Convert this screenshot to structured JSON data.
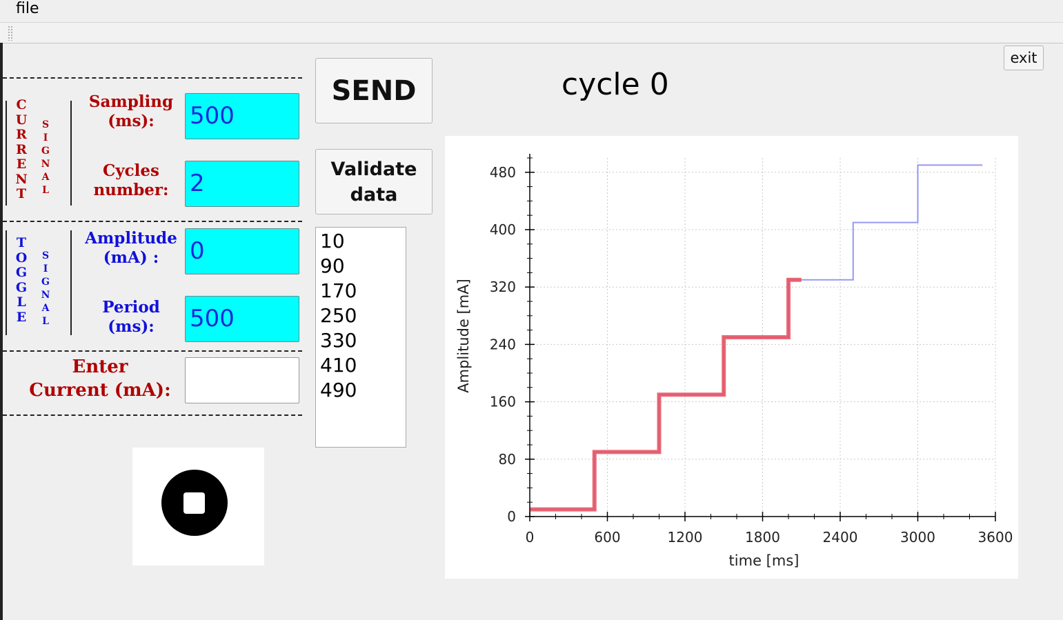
{
  "menubar": {
    "file_label": "file"
  },
  "window": {
    "exit_label": "exit"
  },
  "current_signal": {
    "title_word1": "CURRENT",
    "title_word2": "SIGNAL",
    "sampling_label_line1": "Sampling",
    "sampling_label_line2": "(ms):",
    "sampling_value": "500",
    "cycles_label_line1": "Cycles",
    "cycles_label_line2": "number:",
    "cycles_value": "2"
  },
  "toggle_signal": {
    "title_word1": "TOGGLE",
    "title_word2": "SIGNAL",
    "amplitude_label_line1": "Amplitude",
    "amplitude_label_line2": "(mA) :",
    "amplitude_value": "0",
    "period_label_line1": "Period",
    "period_label_line2": "(ms):",
    "period_value": "500"
  },
  "enter_current": {
    "label_line1": "Enter",
    "label_line2": "Current (mA):",
    "value": ""
  },
  "buttons": {
    "send_label": "SEND",
    "validate_line1": "Validate",
    "validate_line2": "data"
  },
  "values_list": [
    "10",
    "90",
    "170",
    "250",
    "330",
    "410",
    "490"
  ],
  "stop_icon": "stop-circle-icon",
  "cycle_label": "cycle 0",
  "colors": {
    "field_bg": "#00ffff",
    "field_text": "#1a2ad8",
    "current_label": "#b00000",
    "toggle_label": "#1111dd",
    "series_red": "#e8505e",
    "series_blue": "#8c8cf0"
  },
  "chart_data": {
    "type": "line",
    "xlabel": "time [ms]",
    "ylabel": "Amplitude [mA]",
    "xlim": [
      0,
      3600
    ],
    "ylim": [
      0,
      500
    ],
    "xticks": [
      0,
      600,
      1200,
      1800,
      2400,
      3000,
      3600
    ],
    "yticks": [
      0,
      80,
      160,
      240,
      320,
      400,
      480
    ],
    "grid": true,
    "series": [
      {
        "color": "#8c8cf0",
        "step": true,
        "x": [
          0,
          500,
          1000,
          1500,
          2000,
          2500,
          3000,
          3500
        ],
        "y": [
          10,
          90,
          170,
          250,
          330,
          410,
          490,
          490
        ]
      },
      {
        "color": "#e8505e",
        "step": true,
        "x": [
          0,
          500,
          1000,
          1500,
          2000,
          2100
        ],
        "y": [
          10,
          90,
          170,
          250,
          330,
          330
        ]
      }
    ]
  }
}
